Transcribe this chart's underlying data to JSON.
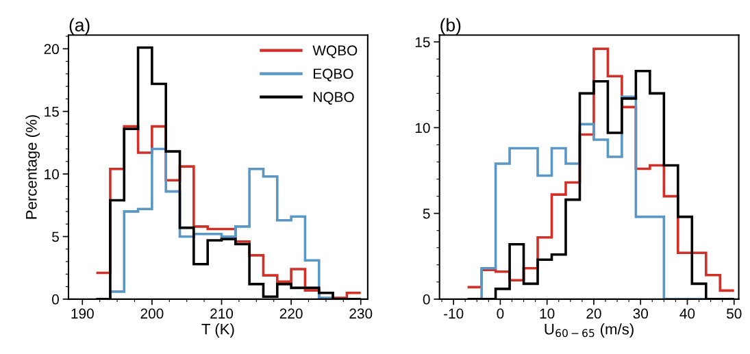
{
  "chart_data": [
    {
      "type": "histogram",
      "title": "(a)",
      "xlabel": "T (K)",
      "ylabel": "Percentage (%)",
      "legend": "top right",
      "bins": [
        192,
        194,
        196,
        198,
        200,
        202,
        204,
        206,
        208,
        210,
        212,
        214,
        216,
        218,
        220,
        222,
        224,
        226,
        228,
        230
      ],
      "series": [
        {
          "name": "WQBO",
          "color": "#d22f26",
          "values": [
            2.1,
            10.4,
            13.8,
            11.7,
            13.8,
            9.5,
            10.6,
            5.8,
            5.6,
            5.6,
            4.6,
            3.5,
            1.9,
            1.4,
            2.4,
            0.7,
            0,
            0.1,
            0.5
          ]
        },
        {
          "name": "EQBO",
          "color": "#5a97c4",
          "values": [
            0,
            0.6,
            7.0,
            7.2,
            12.0,
            8.6,
            5.0,
            5.2,
            5.2,
            5.0,
            5.8,
            10.4,
            9.8,
            6.3,
            6.6,
            3.1,
            0.1,
            0,
            0
          ]
        },
        {
          "name": "NQBO",
          "color": "#000000",
          "values": [
            0,
            7.9,
            13.6,
            20.1,
            17.2,
            11.8,
            5.7,
            2.8,
            4.7,
            4.8,
            4.4,
            1.2,
            0.2,
            1.2,
            0.9,
            0.9,
            0.5,
            0,
            0
          ]
        }
      ],
      "xlim": [
        188,
        231
      ],
      "ylim": [
        0,
        21.1
      ],
      "xticks": [
        190,
        {
          "value": 192.5,
          "label": null
        },
        {
          "value": 195,
          "label": null
        },
        {
          "value": 197.5,
          "label": null
        },
        200,
        {
          "value": 202.5,
          "label": null
        },
        {
          "value": 205,
          "label": null
        },
        {
          "value": 207.5,
          "label": null
        },
        210,
        {
          "value": 212.5,
          "label": null
        },
        {
          "value": 215,
          "label": null
        },
        {
          "value": 217.5,
          "label": null
        },
        220,
        {
          "value": 222.5,
          "label": null
        },
        {
          "value": 225,
          "label": null
        },
        {
          "value": 227.5,
          "label": null
        },
        230
      ],
      "yticks": [
        0,
        {
          "value": 1,
          "label": null
        },
        {
          "value": 2,
          "label": null
        },
        {
          "value": 3,
          "label": null
        },
        {
          "value": 4,
          "label": null
        },
        5,
        {
          "value": 6,
          "label": null
        },
        {
          "value": 7,
          "label": null
        },
        {
          "value": 8,
          "label": null
        },
        {
          "value": 9,
          "label": null
        },
        10,
        {
          "value": 11,
          "label": null
        },
        {
          "value": 12,
          "label": null
        },
        {
          "value": 13,
          "label": null
        },
        {
          "value": 14,
          "label": null
        },
        15,
        {
          "value": 16,
          "label": null
        },
        {
          "value": 17,
          "label": null
        },
        {
          "value": 18,
          "label": null
        },
        {
          "value": 19,
          "label": null
        },
        20,
        {
          "value": 21,
          "label": null
        }
      ]
    },
    {
      "type": "histogram",
      "title": "(b)",
      "xlabel": "U$_{60−65}$ (m/s)",
      "bins": [
        -7,
        -4,
        -1,
        2,
        5,
        8,
        11,
        14,
        17,
        20,
        23,
        26,
        29,
        32,
        35,
        38,
        41,
        44,
        47,
        50
      ],
      "series": [
        {
          "color": "#d22f26",
          "values": [
            0.7,
            1.7,
            1.6,
            1.1,
            1.8,
            3.6,
            6.1,
            6.8,
            9.6,
            14.6,
            13.0,
            11.2,
            7.6,
            7.8,
            6.0,
            2.7,
            2.7,
            1.4,
            0.5
          ]
        },
        {
          "color": "#5a97c4",
          "values": [
            0,
            1.8,
            7.9,
            8.8,
            8.8,
            7.2,
            8.8,
            7.9,
            10.2,
            9.3,
            8.3,
            11.8,
            4.8,
            4.8,
            0,
            0,
            0,
            0,
            0
          ]
        },
        {
          "color": "#000000",
          "values": [
            0,
            0,
            0.6,
            3.2,
            0.9,
            2.3,
            2.6,
            5.8,
            12.0,
            12.7,
            9.7,
            11.7,
            13.3,
            12.0,
            7.8,
            4.8,
            0.9,
            0,
            0
          ]
        }
      ],
      "xlim": [
        -13,
        51
      ],
      "ylim": [
        0,
        15.4
      ],
      "xticks": [
        {
          "value": -12.5,
          "label": null
        },
        -10,
        {
          "value": -7.5,
          "label": null
        },
        {
          "value": -5,
          "label": null
        },
        {
          "value": -2.5,
          "label": null
        },
        0,
        {
          "value": 2.5,
          "label": null
        },
        {
          "value": 5,
          "label": null
        },
        {
          "value": 7.5,
          "label": null
        },
        10,
        {
          "value": 12.5,
          "label": null
        },
        {
          "value": 15,
          "label": null
        },
        {
          "value": 17.5,
          "label": null
        },
        20,
        {
          "value": 22.5,
          "label": null
        },
        {
          "value": 25,
          "label": null
        },
        {
          "value": 27.5,
          "label": null
        },
        30,
        {
          "value": 32.5,
          "label": null
        },
        {
          "value": 35,
          "label": null
        },
        {
          "value": 37.5,
          "label": null
        },
        40,
        {
          "value": 42.5,
          "label": null
        },
        {
          "value": 45,
          "label": null
        },
        {
          "value": 47.5,
          "label": null
        },
        50
      ],
      "yticks": [
        0,
        {
          "value": 1,
          "label": null
        },
        {
          "value": 2,
          "label": null
        },
        {
          "value": 3,
          "label": null
        },
        {
          "value": 4,
          "label": null
        },
        5,
        {
          "value": 6,
          "label": null
        },
        {
          "value": 7,
          "label": null
        },
        {
          "value": 8,
          "label": null
        },
        {
          "value": 9,
          "label": null
        },
        10,
        {
          "value": 11,
          "label": null
        },
        {
          "value": 12,
          "label": null
        },
        {
          "value": 13,
          "label": null
        },
        {
          "value": 14,
          "label": null
        },
        15
      ]
    }
  ]
}
